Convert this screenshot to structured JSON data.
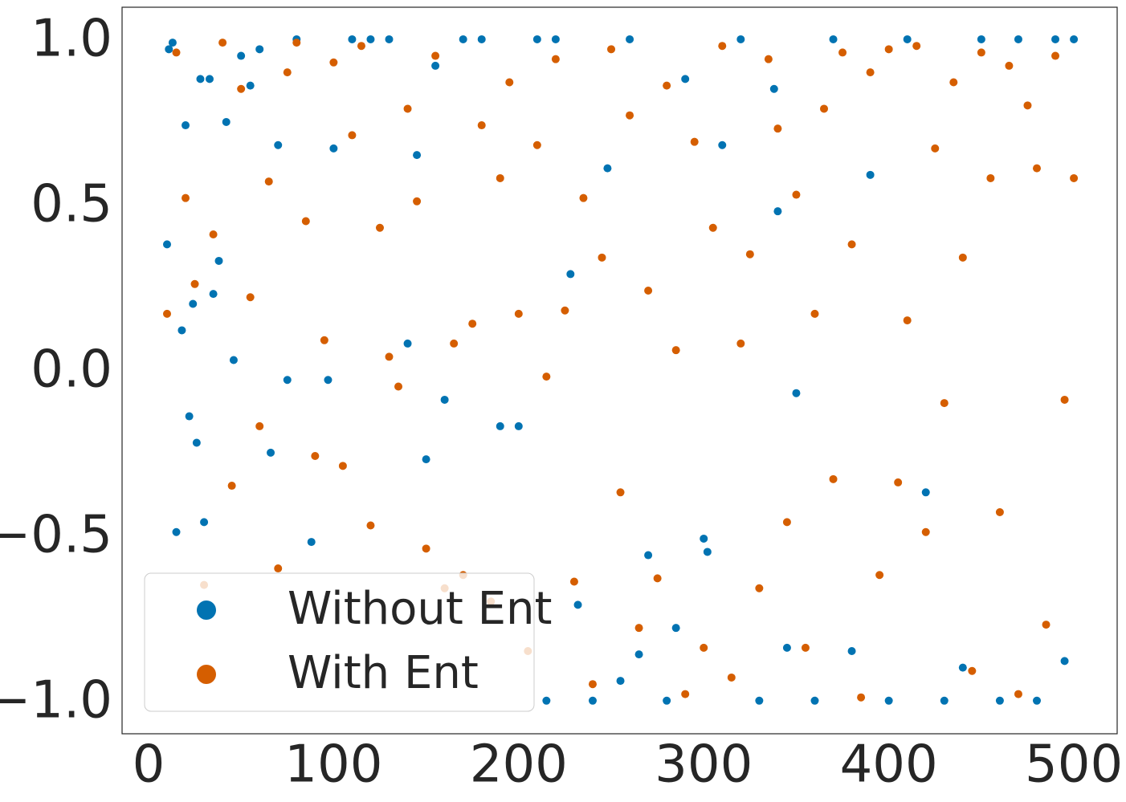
{
  "chart_data": {
    "type": "scatter",
    "xlim": [
      -14.3,
      523.4
    ],
    "ylim": [
      -1.1,
      1.097
    ],
    "xticks": [
      0,
      100,
      200,
      300,
      400,
      500
    ],
    "yticks": [
      {
        "value": -1,
        "label": "−1.0"
      },
      {
        "value": -0.5,
        "label": "−0.5"
      },
      {
        "value": 0,
        "label": "0.0"
      },
      0.5,
      {
        "value": 1,
        "label": "1.0"
      }
    ],
    "grid": false,
    "legend": "lower left",
    "series": [
      {
        "name": "Without Ent",
        "color": "#0173b2",
        "x": [
          10,
          11,
          13,
          15,
          18,
          20,
          22,
          24,
          26,
          28,
          30,
          33,
          35,
          38,
          42,
          46,
          50,
          55,
          60,
          66,
          70,
          75,
          80,
          88,
          97,
          100,
          110,
          120,
          130,
          140,
          145,
          150,
          155,
          160,
          170,
          180,
          190,
          200,
          210,
          215,
          220,
          228,
          232,
          240,
          248,
          255,
          260,
          265,
          270,
          280,
          285,
          290,
          300,
          302,
          310,
          320,
          330,
          338,
          340,
          345,
          350,
          360,
          370,
          380,
          390,
          400,
          410,
          420,
          430,
          440,
          450,
          460,
          470,
          480,
          490,
          495,
          500
        ],
        "values": [
          0.38,
          0.97,
          0.99,
          -0.49,
          0.12,
          0.74,
          -0.14,
          0.2,
          -0.22,
          0.88,
          -0.46,
          0.88,
          0.23,
          0.33,
          0.75,
          0.03,
          0.95,
          0.86,
          0.97,
          -0.25,
          0.68,
          -0.03,
          1.0,
          -0.52,
          -0.03,
          0.67,
          1.0,
          1.0,
          1.0,
          0.08,
          0.65,
          -0.27,
          0.92,
          -0.09,
          1.0,
          1.0,
          -0.17,
          -0.17,
          1.0,
          -1.0,
          1.0,
          0.29,
          -0.71,
          -1.0,
          0.61,
          -0.94,
          1.0,
          -0.86,
          -0.56,
          -1.0,
          -0.78,
          0.88,
          -0.51,
          -0.55,
          0.68,
          1.0,
          -1.0,
          0.85,
          0.48,
          -0.84,
          -0.07,
          -1.0,
          1.0,
          -0.85,
          0.59,
          -1.0,
          1.0,
          -0.37,
          -1.0,
          -0.9,
          1.0,
          -1.0,
          1.0,
          -1.0,
          1.0,
          -0.88,
          1.0
        ]
      },
      {
        "name": "With Ent",
        "color": "#d55e00",
        "x": [
          10,
          15,
          20,
          25,
          30,
          35,
          40,
          45,
          50,
          55,
          60,
          65,
          70,
          75,
          80,
          85,
          90,
          95,
          100,
          105,
          110,
          115,
          120,
          125,
          130,
          135,
          140,
          145,
          150,
          155,
          160,
          165,
          170,
          175,
          180,
          185,
          190,
          195,
          200,
          205,
          210,
          215,
          220,
          225,
          230,
          235,
          240,
          245,
          250,
          255,
          260,
          265,
          270,
          275,
          280,
          285,
          290,
          295,
          300,
          305,
          310,
          315,
          320,
          325,
          330,
          335,
          340,
          345,
          350,
          355,
          360,
          365,
          370,
          375,
          380,
          385,
          390,
          395,
          400,
          405,
          410,
          415,
          420,
          425,
          430,
          435,
          440,
          445,
          450,
          455,
          460,
          465,
          470,
          475,
          480,
          485,
          490,
          495,
          500
        ],
        "values": [
          0.17,
          0.96,
          0.52,
          0.26,
          -0.65,
          0.41,
          0.99,
          -0.35,
          0.85,
          0.22,
          -0.17,
          0.57,
          -0.6,
          0.9,
          0.99,
          0.45,
          -0.26,
          0.09,
          0.93,
          -0.29,
          0.71,
          0.98,
          -0.47,
          0.43,
          0.04,
          -0.05,
          0.79,
          0.51,
          -0.54,
          0.95,
          -0.66,
          0.08,
          -0.62,
          0.14,
          0.74,
          -0.7,
          0.58,
          0.87,
          0.17,
          -0.85,
          0.68,
          -0.02,
          0.94,
          0.18,
          -0.64,
          0.52,
          -0.95,
          0.34,
          0.97,
          -0.37,
          0.77,
          -0.78,
          0.24,
          -0.63,
          0.86,
          0.06,
          -0.98,
          0.69,
          -0.84,
          0.43,
          0.98,
          -0.93,
          0.08,
          0.35,
          -0.66,
          0.94,
          0.73,
          -0.46,
          0.53,
          -0.84,
          0.17,
          0.79,
          -0.33,
          0.96,
          0.38,
          -0.99,
          0.9,
          -0.62,
          0.97,
          -0.34,
          0.15,
          0.98,
          -0.49,
          0.67,
          -0.1,
          0.87,
          0.34,
          -0.91,
          0.96,
          0.58,
          -0.43,
          0.92,
          -0.98,
          0.8,
          0.61,
          -0.77,
          0.95,
          -0.09,
          0.58
        ]
      }
    ]
  }
}
